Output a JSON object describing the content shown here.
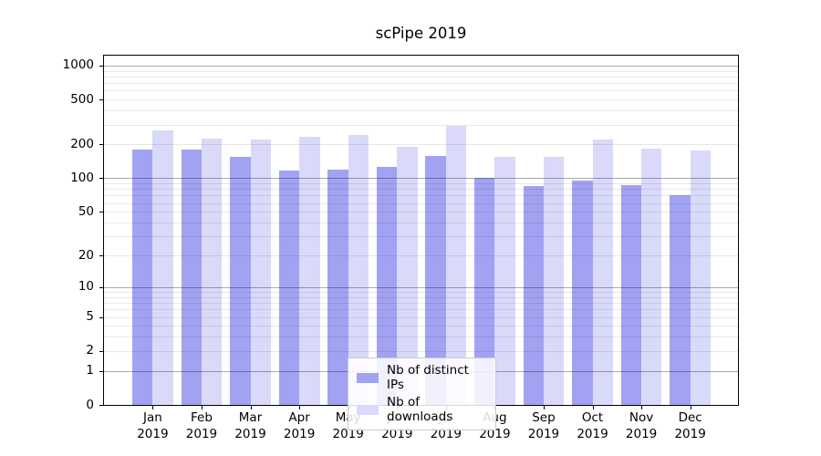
{
  "chart_data": {
    "type": "bar",
    "title": "scPipe 2019",
    "categories": [
      "Jan 2019",
      "Feb 2019",
      "Mar 2019",
      "Apr 2019",
      "May 2019",
      "Jun 2019",
      "Jul 2019",
      "Aug 2019",
      "Sep 2019",
      "Oct 2019",
      "Nov 2019",
      "Dec 2019"
    ],
    "series": [
      {
        "name": "Nb of distinct IPs",
        "key": "ips",
        "values": [
          180,
          180,
          155,
          117,
          119,
          126,
          158,
          100,
          85,
          96,
          87,
          70
        ]
      },
      {
        "name": "Nb of downloads",
        "key": "downloads",
        "values": [
          268,
          225,
          220,
          233,
          243,
          191,
          292,
          154,
          154,
          222,
          185,
          177
        ]
      }
    ],
    "yscale": "log1p",
    "yticks": [
      0,
      1,
      2,
      5,
      10,
      20,
      50,
      100,
      200,
      500,
      1000
    ],
    "ylim": [
      0,
      1270
    ],
    "grid": {
      "major": [
        1,
        10,
        100,
        1000
      ],
      "minor": [
        2,
        3,
        4,
        5,
        6,
        7,
        8,
        9,
        20,
        30,
        40,
        50,
        60,
        70,
        80,
        90,
        200,
        300,
        400,
        500,
        600,
        700,
        800,
        900
      ]
    },
    "legend_position": "bottom-center",
    "xlabel": "",
    "ylabel": ""
  },
  "legend": {
    "items": [
      {
        "label": "Nb of distinct IPs",
        "series": "ips"
      },
      {
        "label": "Nb of downloads",
        "series": "downloads"
      }
    ]
  },
  "colors": {
    "ips": "#a2a2f3",
    "downloads": "#d9d9fa",
    "grid_major": "rgba(0,0,0,0.33)",
    "grid_minor": "rgba(0,0,0,0.09)",
    "axis": "#000000",
    "legend_border": "#cccccc",
    "background": "#ffffff"
  }
}
